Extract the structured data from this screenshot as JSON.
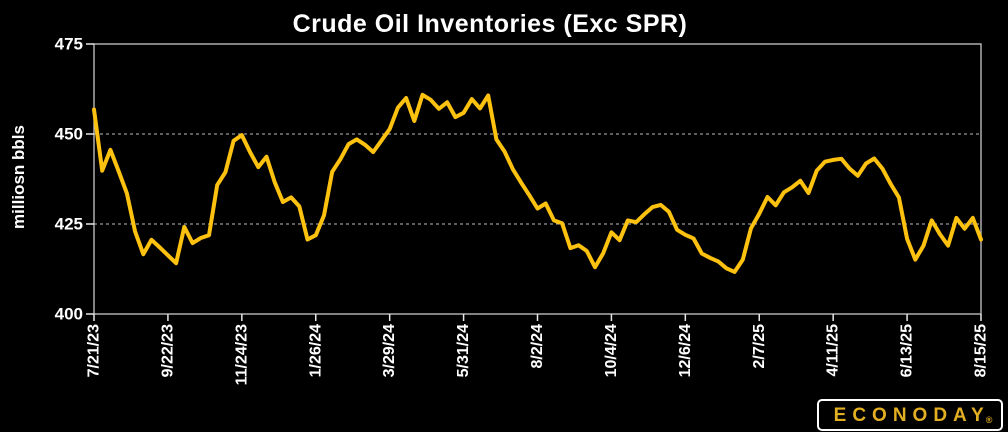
{
  "chart": {
    "title": "Crude Oil Inventories (Exc SPR)",
    "ylabel": "milliosn bbls"
  },
  "colors": {
    "background": "#000000",
    "line": "#FDC110",
    "axis_border": "#C9C9C9",
    "gridline": "#BDBDBD",
    "tick": "#E6E6E6",
    "label_text": "#FFFFFF",
    "logo_gold": "#E2AE22"
  },
  "chart_data": {
    "type": "line",
    "title": "Crude Oil Inventories (Exc SPR)",
    "xlabel": "",
    "ylabel": "milliosn bbls",
    "ylim": [
      400,
      475
    ],
    "yticks": [
      475,
      450,
      425,
      400
    ],
    "gridlines": [
      450,
      425
    ],
    "grid_style": "dashed horizontal",
    "legend": "none",
    "x_tick_labels": [
      "7/21/23",
      "9/22/23",
      "11/24/23",
      "1/26/24",
      "3/29/24",
      "5/31/24",
      "8/2/24",
      "10/4/24",
      "12/6/24",
      "2/7/25",
      "4/11/25",
      "6/13/25",
      "8/15/25"
    ],
    "x_tick_indices": [
      0,
      9,
      18,
      27,
      36,
      45,
      54,
      63,
      72,
      81,
      90,
      99,
      108
    ],
    "series": [
      {
        "name": "Crude Oil Inventories (Exc SPR)",
        "cadence": "weekly",
        "start": "7/21/23",
        "end": "8/15/25",
        "unit": "million bbls",
        "values": [
          456.8,
          439.8,
          445.6,
          439.7,
          433.5,
          422.9,
          416.6,
          420.6,
          418.5,
          416.3,
          414.1,
          424.2,
          419.7,
          421.1,
          421.9,
          435.8,
          439.4,
          448.1,
          449.7,
          445.0,
          440.8,
          443.7,
          436.6,
          431.1,
          432.4,
          429.9,
          420.7,
          421.9,
          427.4,
          439.5,
          443.0,
          447.2,
          448.5,
          447.0,
          445.0,
          448.2,
          451.4,
          457.3,
          460.0,
          453.6,
          460.9,
          459.5,
          457.0,
          458.8,
          454.7,
          455.9,
          459.7,
          457.1,
          460.7,
          448.5,
          445.1,
          440.2,
          436.5,
          433.0,
          429.3,
          430.7,
          426.0,
          425.2,
          418.3,
          419.1,
          417.5,
          413.0,
          416.9,
          422.7,
          420.5,
          426.0,
          425.5,
          427.7,
          429.7,
          430.3,
          428.4,
          423.4,
          422.0,
          421.0,
          416.8,
          415.6,
          414.6,
          412.7,
          411.7,
          415.1,
          423.8,
          427.9,
          432.5,
          430.2,
          433.8,
          435.2,
          437.0,
          433.6,
          439.8,
          442.3,
          442.8,
          443.1,
          440.4,
          438.4,
          441.8,
          443.2,
          440.4,
          436.1,
          432.4,
          420.9,
          415.1,
          419.0,
          426.0,
          422.2,
          419.0,
          426.7,
          423.7,
          426.7,
          420.7
        ]
      }
    ]
  },
  "logo": {
    "text": "ECONODAY",
    "registered_mark": "®"
  }
}
